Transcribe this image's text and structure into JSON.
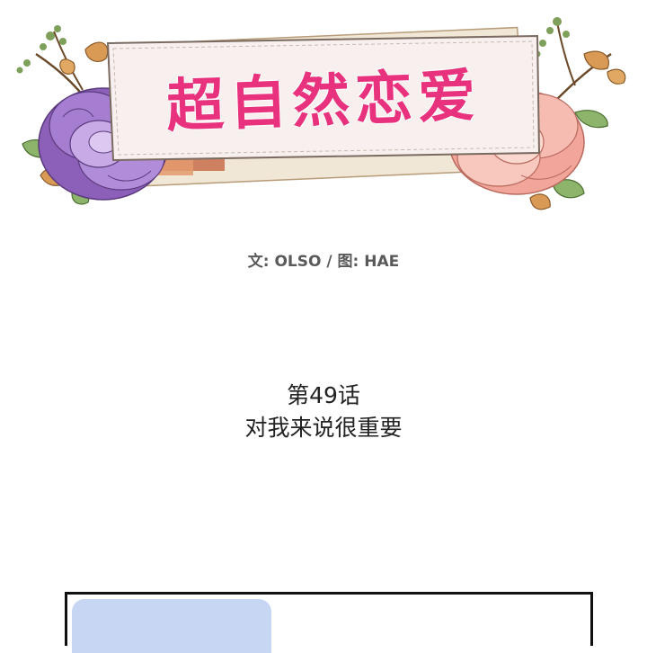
{
  "header": {
    "series_title": "超自然恋爱",
    "title_color": "#e8327e"
  },
  "credits": {
    "text": "文: OLSO / 图: HAE"
  },
  "chapter": {
    "number": "第49话",
    "title": "对我来说很重要"
  },
  "panel": {
    "sky_color": "#c6d6f3",
    "border_color": "#111111"
  }
}
